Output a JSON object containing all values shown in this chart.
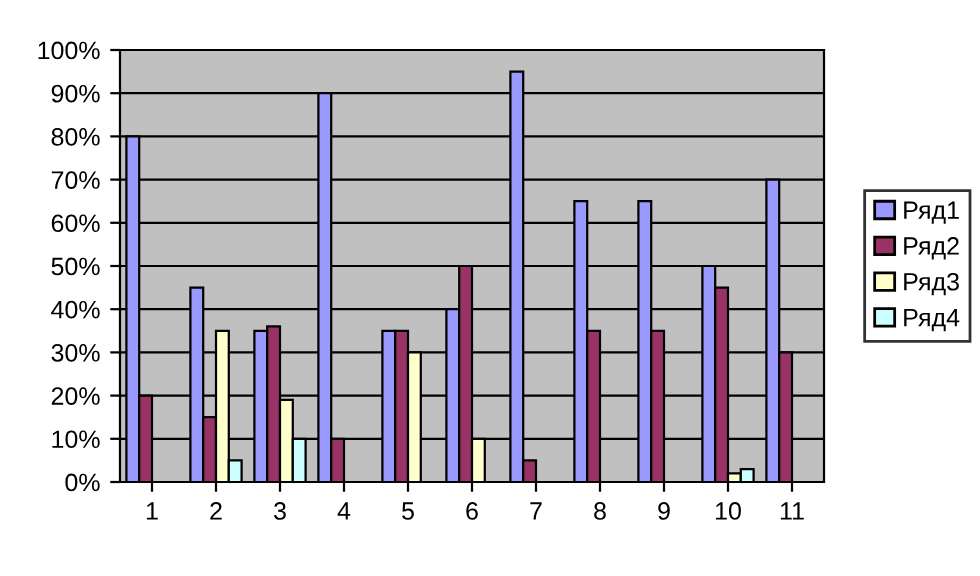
{
  "chart_data": {
    "type": "bar",
    "categories": [
      "1",
      "2",
      "3",
      "4",
      "5",
      "6",
      "7",
      "8",
      "9",
      "10",
      "11"
    ],
    "series": [
      {
        "name": "Ряд1",
        "color": "#9999ff",
        "values": [
          80,
          45,
          35,
          90,
          35,
          40,
          95,
          65,
          65,
          50,
          70
        ]
      },
      {
        "name": "Ряд2",
        "color": "#993366",
        "values": [
          20,
          15,
          36,
          10,
          35,
          50,
          5,
          35,
          35,
          45,
          30
        ]
      },
      {
        "name": "Ряд3",
        "color": "#ffffcc",
        "values": [
          null,
          35,
          19,
          null,
          30,
          10,
          null,
          null,
          null,
          2,
          null
        ]
      },
      {
        "name": "Ряд4",
        "color": "#ccffff",
        "values": [
          null,
          5,
          10,
          null,
          null,
          null,
          null,
          null,
          null,
          3,
          null
        ]
      }
    ],
    "ylim": [
      0,
      100
    ],
    "yticks": [
      {
        "value": 0,
        "label": "0%"
      },
      {
        "value": 10,
        "label": "10%"
      },
      {
        "value": 20,
        "label": "20%"
      },
      {
        "value": 30,
        "label": "30%"
      },
      {
        "value": 40,
        "label": "40%"
      },
      {
        "value": 50,
        "label": "50%"
      },
      {
        "value": 60,
        "label": "60%"
      },
      {
        "value": 70,
        "label": "70%"
      },
      {
        "value": 80,
        "label": "80%"
      },
      {
        "value": 90,
        "label": "90%"
      },
      {
        "value": 100,
        "label": "100%"
      }
    ],
    "grid": "y",
    "legend": "right"
  }
}
